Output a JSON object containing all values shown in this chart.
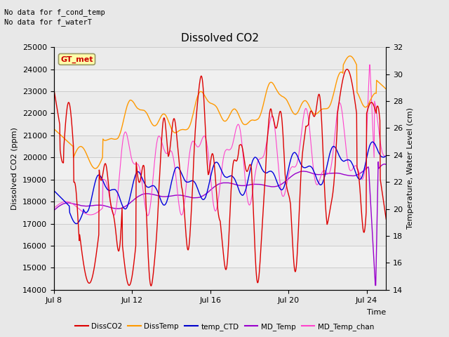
{
  "title": "Dissolved CO2",
  "text_lines": [
    "No data for f_cond_temp",
    "No data for f_waterT"
  ],
  "gt_met_label": "GT_met",
  "xlabel": "Time",
  "ylabel_left": "Dissolved CO2 (ppm)",
  "ylabel_right": "Temperature, Water Level (cm)",
  "ylim_left": [
    14000,
    25000
  ],
  "ylim_right": [
    14,
    32
  ],
  "xlim": [
    0,
    17
  ],
  "xtick_labels": [
    "Jul 8",
    "Jul 12",
    "Jul 16",
    "Jul 20",
    "Jul 24"
  ],
  "xtick_positions": [
    0,
    4,
    8,
    12,
    16
  ],
  "yticks_left": [
    14000,
    15000,
    16000,
    17000,
    18000,
    19000,
    20000,
    21000,
    22000,
    23000,
    24000,
    25000
  ],
  "yticks_right": [
    14,
    16,
    18,
    20,
    22,
    24,
    26,
    28,
    30,
    32
  ],
  "legend_entries": [
    "DissCO2",
    "DissTemp",
    "temp_CTD",
    "MD_Temp",
    "MD_Temp_chan"
  ],
  "legend_colors": [
    "#dd0000",
    "#ff9900",
    "#0000cc",
    "#9900cc",
    "#ff44cc"
  ],
  "line_colors": {
    "DissCO2": "#dd0000",
    "DissTemp": "#ff9900",
    "temp_CTD": "#0000dd",
    "MD_Temp": "#9900cc",
    "MD_Temp_chan": "#ff44cc"
  },
  "bg_color": "#e8e8e8",
  "plot_bg": "#f0f0f0",
  "grid_color": "#cccccc",
  "figsize": [
    6.4,
    4.8
  ],
  "dpi": 100
}
